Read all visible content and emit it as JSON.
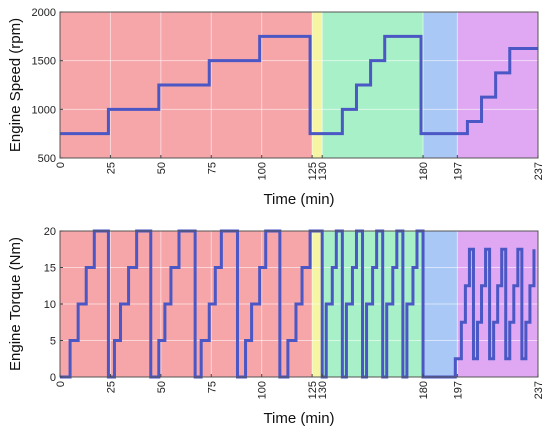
{
  "chart_data": [
    {
      "type": "line",
      "ylabel": "Engine Speed (rpm)",
      "xlabel": "Time (min)",
      "xlim": [
        0,
        237
      ],
      "ylim": [
        500,
        2000
      ],
      "xticks": [
        0,
        25,
        50,
        75,
        100,
        125,
        130,
        180,
        197,
        237
      ],
      "yticks": [
        500,
        1000,
        1500,
        2000
      ],
      "grid": true,
      "line_color": "#4a57c4",
      "regions": [
        {
          "from": 0,
          "to": 125,
          "color": "#f6a5a8"
        },
        {
          "from": 125,
          "to": 130,
          "color": "#f5f5a3"
        },
        {
          "from": 130,
          "to": 180,
          "color": "#a8f0c8"
        },
        {
          "from": 180,
          "to": 197,
          "color": "#a9c8f5"
        },
        {
          "from": 197,
          "to": 237,
          "color": "#e0a8f2"
        }
      ],
      "x": [
        0,
        24,
        24,
        49,
        49,
        74,
        74,
        99,
        99,
        124,
        124,
        133,
        133,
        140,
        140,
        147,
        147,
        154,
        154,
        161,
        161,
        179,
        179,
        195,
        195,
        202,
        202,
        209,
        209,
        216,
        216,
        223,
        223,
        230,
        230,
        237
      ],
      "y": [
        750,
        750,
        1000,
        1000,
        1250,
        1250,
        1500,
        1500,
        1750,
        1750,
        750,
        750,
        750,
        750,
        1000,
        1000,
        1250,
        1250,
        1500,
        1500,
        1750,
        1750,
        750,
        750,
        750,
        750,
        875,
        875,
        1125,
        1125,
        1375,
        1375,
        1625,
        1625,
        1625,
        1625
      ]
    },
    {
      "type": "line",
      "ylabel": "Engine Torque (Nm)",
      "xlabel": "Time (min)",
      "xlim": [
        0,
        237
      ],
      "ylim": [
        0,
        20
      ],
      "xticks": [
        0,
        25,
        50,
        75,
        100,
        125,
        130,
        180,
        197,
        237
      ],
      "yticks": [
        0,
        5,
        10,
        15,
        20
      ],
      "grid": true,
      "line_color": "#4a57c4",
      "regions": [
        {
          "from": 0,
          "to": 125,
          "color": "#f6a5a8"
        },
        {
          "from": 125,
          "to": 130,
          "color": "#f5f5a3"
        },
        {
          "from": 130,
          "to": 180,
          "color": "#a8f0c8"
        },
        {
          "from": 180,
          "to": 197,
          "color": "#a9c8f5"
        },
        {
          "from": 197,
          "to": 237,
          "color": "#e0a8f2"
        }
      ],
      "x": [
        0,
        5,
        5,
        9,
        9,
        13,
        13,
        17,
        17,
        20,
        20,
        24,
        24,
        27,
        27,
        30,
        30,
        34,
        34,
        38,
        38,
        42,
        42,
        45,
        45,
        49,
        49,
        52,
        52,
        55,
        55,
        59,
        59,
        63,
        63,
        67,
        67,
        70,
        70,
        74,
        74,
        77,
        77,
        80,
        80,
        84,
        84,
        88,
        88,
        92,
        92,
        95,
        95,
        99,
        99,
        102,
        102,
        105,
        105,
        109,
        109,
        113,
        113,
        117,
        117,
        120,
        120,
        124,
        124,
        130,
        130,
        132,
        132,
        135,
        135,
        137,
        137,
        140,
        140,
        142,
        142,
        145,
        145,
        147,
        147,
        150,
        150,
        152,
        152,
        155,
        155,
        157,
        157,
        160,
        160,
        162,
        162,
        165,
        165,
        167,
        167,
        170,
        170,
        172,
        172,
        175,
        175,
        177,
        177,
        180,
        180,
        196,
        196,
        199,
        199,
        201,
        201,
        203,
        203,
        205,
        205,
        207,
        207,
        209,
        209,
        211,
        211,
        213,
        213,
        215,
        215,
        217,
        217,
        219,
        219,
        221,
        221,
        223,
        223,
        225,
        225,
        227,
        227,
        229,
        229,
        231,
        231,
        233,
        233,
        235,
        235
      ],
      "y": [
        0,
        0,
        5,
        5,
        10,
        10,
        15,
        15,
        20,
        20,
        20,
        20,
        0,
        0,
        5,
        5,
        10,
        10,
        15,
        15,
        20,
        20,
        20,
        20,
        0,
        0,
        5,
        5,
        10,
        10,
        15,
        15,
        20,
        20,
        20,
        20,
        0,
        0,
        5,
        5,
        10,
        10,
        15,
        15,
        20,
        20,
        20,
        20,
        0,
        0,
        5,
        5,
        10,
        10,
        15,
        15,
        20,
        20,
        20,
        20,
        0,
        0,
        5,
        5,
        10,
        10,
        15,
        15,
        20,
        20,
        0,
        0,
        10,
        10,
        15,
        15,
        20,
        20,
        0,
        0,
        10,
        10,
        15,
        15,
        20,
        20,
        0,
        0,
        10,
        10,
        15,
        15,
        20,
        20,
        0,
        0,
        10,
        10,
        15,
        15,
        20,
        20,
        0,
        0,
        10,
        10,
        15,
        15,
        20,
        20,
        0,
        0,
        2.5,
        2.5,
        7.5,
        7.5,
        12.5,
        12.5,
        17.5,
        17.5,
        2.5,
        2.5,
        7.5,
        7.5,
        12.5,
        12.5,
        17.5,
        17.5,
        2.5,
        2.5,
        7.5,
        7.5,
        12.5,
        12.5,
        17.5,
        17.5,
        2.5,
        2.5,
        7.5,
        7.5,
        12.5,
        12.5,
        17.5,
        17.5,
        2.5,
        2.5,
        7.5,
        7.5,
        12.5,
        12.5,
        17.5
      ]
    }
  ]
}
